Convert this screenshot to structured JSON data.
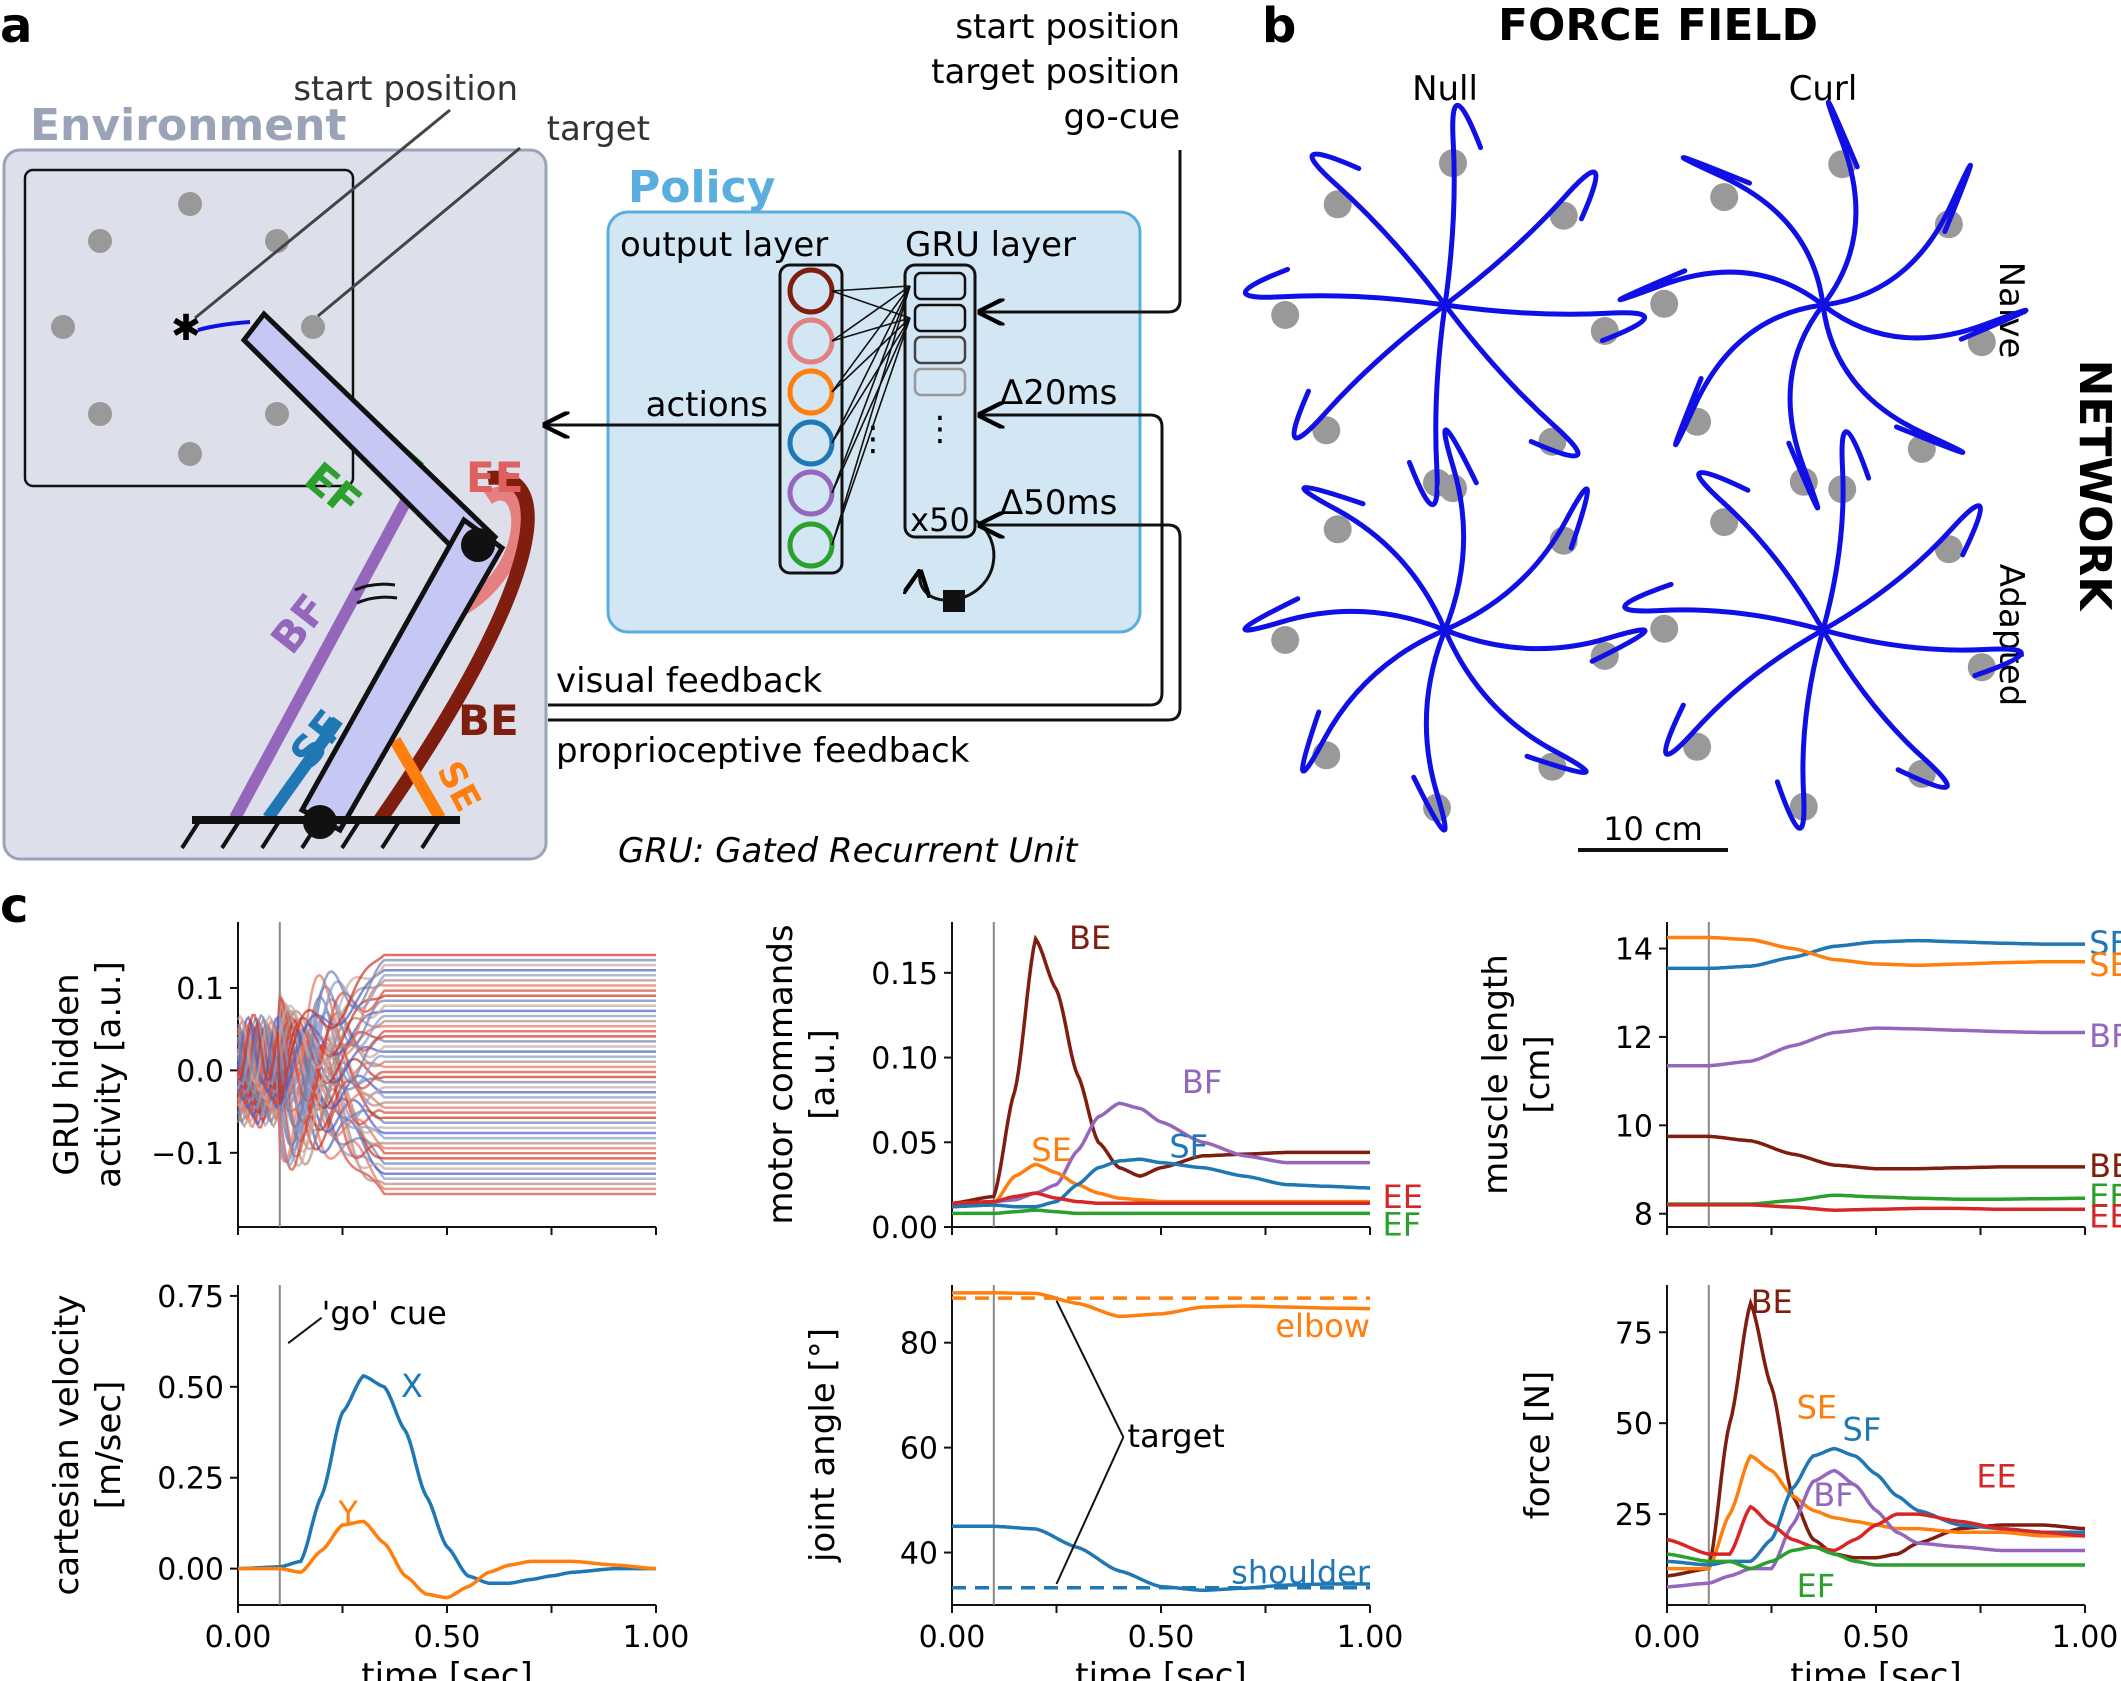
{
  "panel_letters": {
    "a": "a",
    "b": "b",
    "c": "c"
  },
  "diagram": {
    "environment_label": "Environment",
    "start_label": "start position",
    "target_label": "target",
    "policy_label": "Policy",
    "output_layer": "output layer",
    "gru_layer": "GRU layer",
    "actions": "actions",
    "inputs": [
      "start position",
      "target position",
      "go-cue"
    ],
    "delay_visual": "Δ20ms",
    "delay_proprio": "Δ50ms",
    "x50": "x50",
    "visual_feedback": "visual feedback",
    "proprio_feedback": "proprioceptive feedback",
    "gru_caption": "GRU: Gated Recurrent Unit",
    "muscles": [
      "EF",
      "EE",
      "BF",
      "SF",
      "BE",
      "SE"
    ]
  },
  "colors": {
    "SF": "#1f77b4",
    "SE": "#ff7f0e",
    "EF": "#2ca02c",
    "EE": "#d62728",
    "BF": "#9467bd",
    "BE": "#7f1d0f",
    "trajectory": "#1010e6",
    "env_bg": "#dde0ea",
    "policy_bg": "#d3e6f4",
    "policy_title": "#5aaede"
  },
  "force_field": {
    "title": "FORCE FIELD",
    "columns": [
      "Null",
      "Curl"
    ],
    "rows": [
      "Naive",
      "Adapted"
    ],
    "side_label": "NETWORK",
    "scale_bar": "10 cm"
  },
  "chart_data": [
    {
      "type": "line",
      "panel": "GRU hidden activity",
      "ylabel": "GRU hidden activity [a.u.]",
      "xlim": [
        0,
        1
      ],
      "ylim": [
        -0.19,
        0.18
      ],
      "yticks": [
        0.1,
        0.0,
        -0.1
      ],
      "ytick_labels": [
        "0.1",
        "0.0",
        "−0.1"
      ],
      "go_cue": 0.1,
      "note": "64 hidden unit traces"
    },
    {
      "type": "line",
      "panel": "motor commands",
      "ylabel": "motor commands [a.u.]",
      "xlim": [
        0,
        1
      ],
      "ylim": [
        0,
        0.18
      ],
      "yticks": [
        0.15,
        0.1,
        0.05,
        0.0
      ],
      "ytick_labels": [
        "0.15",
        "0.10",
        "0.05",
        "0.00"
      ],
      "go_cue": 0.1,
      "x": [
        0,
        0.1,
        0.15,
        0.2,
        0.25,
        0.3,
        0.35,
        0.4,
        0.45,
        0.5,
        0.6,
        0.7,
        0.8,
        0.9,
        1.0
      ],
      "series": [
        {
          "name": "BE",
          "values": [
            0.014,
            0.018,
            0.08,
            0.17,
            0.14,
            0.09,
            0.05,
            0.035,
            0.03,
            0.035,
            0.042,
            0.043,
            0.044,
            0.044,
            0.044
          ]
        },
        {
          "name": "BF",
          "values": [
            0.013,
            0.015,
            0.016,
            0.02,
            0.025,
            0.045,
            0.065,
            0.073,
            0.07,
            0.062,
            0.05,
            0.042,
            0.038,
            0.038,
            0.038
          ]
        },
        {
          "name": "SE",
          "values": [
            0.012,
            0.014,
            0.03,
            0.037,
            0.032,
            0.025,
            0.02,
            0.017,
            0.016,
            0.015,
            0.015,
            0.015,
            0.015,
            0.015,
            0.015
          ]
        },
        {
          "name": "SF",
          "values": [
            0.012,
            0.013,
            0.012,
            0.012,
            0.015,
            0.025,
            0.035,
            0.039,
            0.04,
            0.038,
            0.035,
            0.03,
            0.025,
            0.024,
            0.023
          ]
        },
        {
          "name": "EE",
          "values": [
            0.014,
            0.015,
            0.018,
            0.02,
            0.017,
            0.015,
            0.014,
            0.014,
            0.014,
            0.014,
            0.014,
            0.014,
            0.014,
            0.014,
            0.014
          ]
        },
        {
          "name": "EF",
          "values": [
            0.008,
            0.008,
            0.009,
            0.01,
            0.009,
            0.008,
            0.008,
            0.008,
            0.008,
            0.008,
            0.008,
            0.008,
            0.008,
            0.008,
            0.008
          ]
        }
      ]
    },
    {
      "type": "line",
      "panel": "muscle length",
      "ylabel": "muscle length [cm]",
      "xlim": [
        0,
        1
      ],
      "ylim": [
        7.7,
        14.6
      ],
      "yticks": [
        14,
        12,
        10,
        8
      ],
      "ytick_labels": [
        "14",
        "12",
        "10",
        "8"
      ],
      "go_cue": 0.1,
      "x": [
        0,
        0.1,
        0.2,
        0.3,
        0.4,
        0.5,
        0.6,
        0.7,
        0.8,
        0.9,
        1.0
      ],
      "series": [
        {
          "name": "SF",
          "values": [
            13.55,
            13.55,
            13.6,
            13.8,
            14.05,
            14.15,
            14.18,
            14.15,
            14.12,
            14.1,
            14.1
          ]
        },
        {
          "name": "SE",
          "values": [
            14.25,
            14.25,
            14.2,
            14.0,
            13.75,
            13.65,
            13.62,
            13.65,
            13.68,
            13.7,
            13.7
          ]
        },
        {
          "name": "BF",
          "values": [
            11.35,
            11.35,
            11.45,
            11.8,
            12.1,
            12.2,
            12.18,
            12.15,
            12.12,
            12.1,
            12.1
          ]
        },
        {
          "name": "BE",
          "values": [
            9.75,
            9.75,
            9.65,
            9.35,
            9.1,
            9.02,
            9.02,
            9.04,
            9.06,
            9.06,
            9.06
          ]
        },
        {
          "name": "EF",
          "values": [
            8.22,
            8.22,
            8.22,
            8.3,
            8.42,
            8.38,
            8.35,
            8.33,
            8.33,
            8.34,
            8.35
          ]
        },
        {
          "name": "EE",
          "values": [
            8.2,
            8.2,
            8.2,
            8.15,
            8.08,
            8.1,
            8.12,
            8.12,
            8.1,
            8.1,
            8.1
          ]
        }
      ]
    },
    {
      "type": "line",
      "panel": "cartesian velocity",
      "ylabel": "cartesian velocity [m/sec]",
      "xlabel": "time [sec]",
      "xlim": [
        0,
        1
      ],
      "ylim": [
        -0.1,
        0.78
      ],
      "yticks": [
        0.75,
        0.5,
        0.25,
        0.0
      ],
      "ytick_labels": [
        "0.75",
        "0.50",
        "0.25",
        "0.00"
      ],
      "xticks": [
        0,
        0.5,
        1.0
      ],
      "xtick_labels": [
        "0.00",
        "0.50",
        "1.00"
      ],
      "go_cue": 0.1,
      "go_cue_label": "'go' cue",
      "x": [
        0,
        0.1,
        0.15,
        0.2,
        0.25,
        0.3,
        0.35,
        0.4,
        0.45,
        0.5,
        0.55,
        0.6,
        0.65,
        0.7,
        0.75,
        0.8,
        0.9,
        1.0
      ],
      "series": [
        {
          "name": "X",
          "values": [
            0,
            0.005,
            0.02,
            0.2,
            0.43,
            0.53,
            0.5,
            0.38,
            0.2,
            0.06,
            -0.02,
            -0.04,
            -0.04,
            -0.03,
            -0.02,
            -0.01,
            0.0,
            0.0
          ]
        },
        {
          "name": "Y",
          "values": [
            0,
            0.0,
            -0.01,
            0.05,
            0.12,
            0.13,
            0.07,
            -0.02,
            -0.07,
            -0.08,
            -0.05,
            -0.01,
            0.01,
            0.02,
            0.02,
            0.02,
            0.01,
            0.0
          ]
        }
      ]
    },
    {
      "type": "line",
      "panel": "joint angle",
      "ylabel": "joint angle [°]",
      "xlabel": "time [sec]",
      "xlim": [
        0,
        1
      ],
      "ylim": [
        30,
        91
      ],
      "yticks": [
        80,
        60,
        40
      ],
      "ytick_labels": [
        "80",
        "60",
        "40"
      ],
      "xticks": [
        0,
        0.5,
        1.0
      ],
      "xtick_labels": [
        "0.00",
        "0.50",
        "1.00"
      ],
      "go_cue": 0.1,
      "target_label": "target",
      "x": [
        0,
        0.1,
        0.2,
        0.3,
        0.4,
        0.5,
        0.6,
        0.7,
        0.8,
        0.9,
        1.0
      ],
      "series": [
        {
          "name": "elbow",
          "values": [
            89.5,
            89.5,
            89.4,
            87.5,
            85.0,
            85.5,
            86.8,
            87.0,
            86.8,
            86.6,
            86.5
          ]
        },
        {
          "name": "elbow target",
          "values": [
            88.5,
            88.5,
            88.5,
            88.5,
            88.5,
            88.5,
            88.5,
            88.5,
            88.5,
            88.5,
            88.5
          ]
        },
        {
          "name": "shoulder",
          "values": [
            45,
            45,
            44.5,
            41,
            36.5,
            33.5,
            32.8,
            33.2,
            33.8,
            34.0,
            34.0
          ]
        },
        {
          "name": "shoulder target",
          "values": [
            33.3,
            33.3,
            33.3,
            33.3,
            33.3,
            33.3,
            33.3,
            33.3,
            33.3,
            33.3,
            33.3
          ]
        }
      ]
    },
    {
      "type": "line",
      "panel": "force",
      "ylabel": "force [N]",
      "xlabel": "time [sec]",
      "xlim": [
        0,
        1
      ],
      "ylim": [
        0,
        88
      ],
      "yticks": [
        75,
        50,
        25
      ],
      "ytick_labels": [
        "75",
        "50",
        "25"
      ],
      "xticks": [
        0,
        0.5,
        1.0
      ],
      "xtick_labels": [
        "0.00",
        "0.50",
        "1.00"
      ],
      "go_cue": 0.1,
      "x": [
        0,
        0.1,
        0.15,
        0.2,
        0.25,
        0.3,
        0.35,
        0.4,
        0.45,
        0.5,
        0.55,
        0.6,
        0.7,
        0.8,
        0.9,
        1.0
      ],
      "series": [
        {
          "name": "BE",
          "values": [
            8,
            10,
            50,
            83,
            60,
            30,
            18,
            14,
            13,
            13,
            14,
            17,
            21,
            22,
            22,
            21
          ]
        },
        {
          "name": "SE",
          "values": [
            10,
            10,
            25,
            41,
            37,
            30,
            26,
            24,
            23,
            22,
            21,
            21,
            20,
            20,
            19,
            19
          ]
        },
        {
          "name": "SF",
          "values": [
            12,
            11,
            12,
            12,
            18,
            32,
            41,
            43,
            41,
            36,
            30,
            26,
            22,
            21,
            20,
            20
          ]
        },
        {
          "name": "BF",
          "values": [
            5,
            6,
            8,
            10,
            10,
            22,
            34,
            37,
            33,
            26,
            20,
            17,
            16,
            15,
            15,
            15
          ]
        },
        {
          "name": "EE",
          "values": [
            18,
            14,
            14,
            27,
            22,
            18,
            16,
            15,
            18,
            22,
            25,
            25,
            23,
            21,
            20,
            19
          ]
        },
        {
          "name": "EF",
          "values": [
            14,
            12,
            12,
            10,
            12,
            15,
            16,
            14,
            12,
            11,
            11,
            11,
            11,
            11,
            11,
            11
          ]
        }
      ]
    }
  ]
}
